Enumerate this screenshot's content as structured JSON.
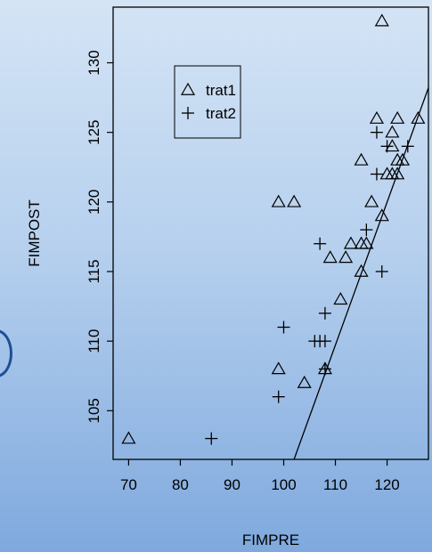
{
  "chart_data": {
    "type": "scatter",
    "title": "",
    "xlabel": "FIMPRE",
    "ylabel": "FIMPOST",
    "xlim": [
      67,
      128
    ],
    "ylim": [
      101.5,
      134
    ],
    "xticks": [
      70,
      80,
      90,
      100,
      110,
      120
    ],
    "yticks": [
      105,
      110,
      115,
      120,
      125,
      130
    ],
    "grid": false,
    "legend_position": "top-left",
    "series": [
      {
        "name": "trat1",
        "marker": "triangle",
        "points": [
          [
            70,
            103
          ],
          [
            99,
            120
          ],
          [
            102,
            120
          ],
          [
            99,
            108
          ],
          [
            104,
            107
          ],
          [
            108,
            108
          ],
          [
            109,
            116
          ],
          [
            111,
            113
          ],
          [
            112,
            116
          ],
          [
            113,
            117
          ],
          [
            115,
            117
          ],
          [
            116,
            117
          ],
          [
            115,
            115
          ],
          [
            115,
            123
          ],
          [
            117,
            120
          ],
          [
            118,
            126
          ],
          [
            119,
            119
          ],
          [
            119,
            133
          ],
          [
            120,
            122
          ],
          [
            121,
            125
          ],
          [
            121,
            124
          ],
          [
            121,
            122
          ],
          [
            122,
            126
          ],
          [
            122,
            122
          ],
          [
            122,
            123
          ],
          [
            123,
            123
          ],
          [
            126,
            126
          ]
        ]
      },
      {
        "name": "trat2",
        "marker": "plus",
        "points": [
          [
            86,
            103
          ],
          [
            99,
            106
          ],
          [
            100,
            111
          ],
          [
            106,
            110
          ],
          [
            107,
            110
          ],
          [
            108,
            110
          ],
          [
            108,
            108
          ],
          [
            108,
            112
          ],
          [
            107,
            117
          ],
          [
            116,
            118
          ],
          [
            118,
            125
          ],
          [
            118,
            122
          ],
          [
            119,
            115
          ],
          [
            120,
            124
          ],
          [
            124,
            124
          ]
        ]
      }
    ],
    "regression_line": {
      "x": [
        102,
        128
      ],
      "y": [
        101.5,
        128.2
      ]
    }
  }
}
